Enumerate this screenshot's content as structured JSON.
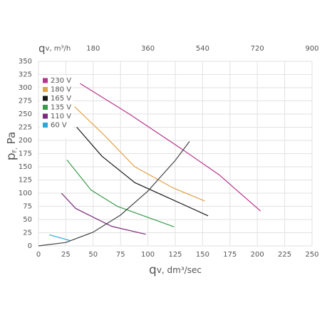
{
  "chart_data": {
    "type": "line",
    "xlabel": [
      "q",
      "v, dm³/sec"
    ],
    "ylabel": [
      "p",
      "F,",
      " Pa"
    ],
    "x2label": [
      "q",
      "v, m³/h"
    ],
    "xlim": [
      0,
      250
    ],
    "xticks": [
      0,
      25,
      50,
      75,
      100,
      125,
      150,
      175,
      200,
      225,
      250
    ],
    "ylim": [
      0,
      350
    ],
    "yticks": [
      0,
      25,
      50,
      75,
      100,
      125,
      150,
      175,
      200,
      225,
      250,
      275,
      300,
      325,
      350
    ],
    "x2lim": [
      0,
      900
    ],
    "x2ticks": [
      180,
      360,
      540,
      720,
      900
    ],
    "grid": true,
    "legend": "upper left",
    "series": [
      {
        "name": "230 V",
        "color": "#b8348c",
        "x": [
          38,
          83,
          130,
          165,
          203
        ],
        "values": [
          308,
          250,
          185,
          135,
          66
        ]
      },
      {
        "name": "180 V",
        "color": "#e0a24a",
        "x": [
          33,
          60,
          88,
          123,
          152
        ],
        "values": [
          264,
          210,
          150,
          110,
          85
        ]
      },
      {
        "name": "165 V",
        "color": "#1a1a1a",
        "x": [
          35,
          58,
          88,
          120,
          155
        ],
        "values": [
          225,
          170,
          120,
          90,
          57
        ]
      },
      {
        "name": "135 V",
        "color": "#3a9a4a",
        "x": [
          26,
          48,
          72,
          124
        ],
        "values": [
          163,
          106,
          75,
          36
        ]
      },
      {
        "name": "110 V",
        "color": "#7a2a7a",
        "x": [
          21,
          34,
          67,
          98
        ],
        "values": [
          100,
          71,
          37,
          22
        ]
      },
      {
        "name": "60 V",
        "color": "#29a9d8",
        "x": [
          10,
          29
        ],
        "values": [
          21,
          10
        ]
      },
      {
        "color": "#444444",
        "x": [
          0,
          25,
          50,
          75,
          100,
          125,
          138
        ],
        "values": [
          0,
          6.5,
          26,
          58.5,
          104,
          162,
          198
        ]
      }
    ]
  }
}
